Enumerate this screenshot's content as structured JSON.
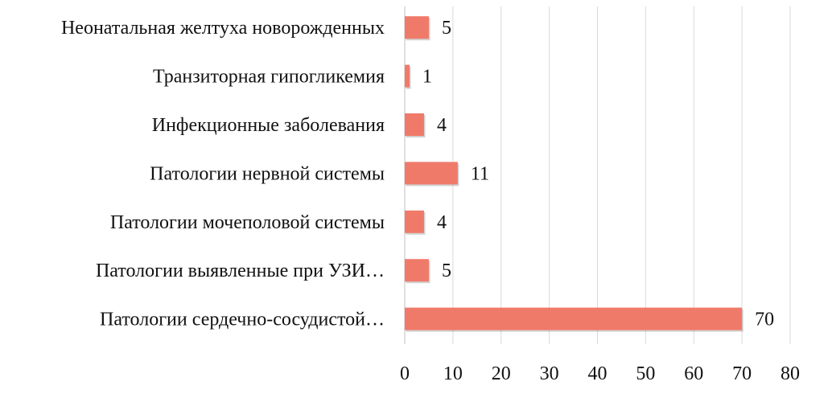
{
  "chart_data": {
    "type": "bar",
    "orientation": "horizontal",
    "title": "",
    "xlabel": "",
    "ylabel": "",
    "categories": [
      "Патологии сердечно-сосудистой…",
      "Патологии выявленные при УЗИ…",
      "Патологии мочеполовой системы",
      "Патологии нервной системы",
      "Инфекционные заболевания",
      "Транзиторная гипогликемия",
      "Неонатальная желтуха новорожденных"
    ],
    "values": [
      70,
      5,
      4,
      11,
      4,
      1,
      5
    ],
    "value_labels": [
      "70",
      "5",
      "4",
      "11",
      "4",
      "1",
      "5"
    ],
    "xlim": [
      0,
      80
    ],
    "x_ticks": [
      0,
      10,
      20,
      30,
      40,
      50,
      60,
      70,
      80
    ],
    "x_tick_labels": [
      "0",
      "10",
      "20",
      "30",
      "40",
      "50",
      "60",
      "70",
      "80"
    ],
    "grid": "vertical",
    "legend": "none",
    "bar_color": "#f07a6a",
    "grid_color": "#d9d9d9"
  }
}
